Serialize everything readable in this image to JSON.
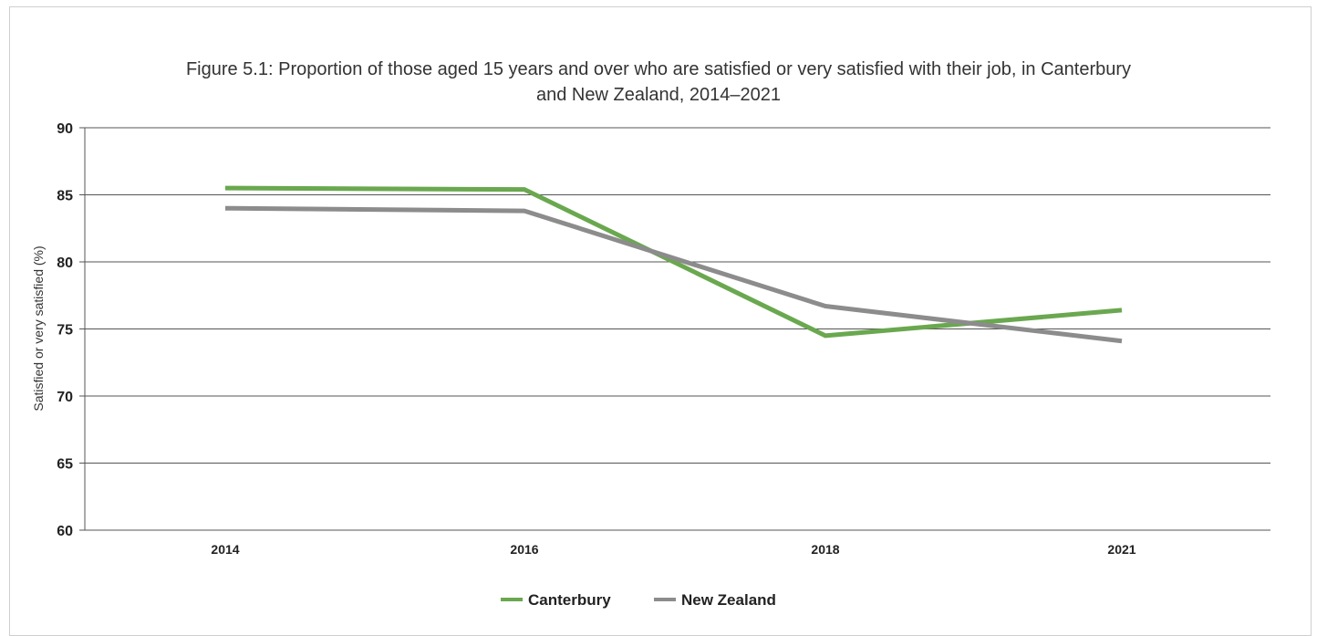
{
  "chart_data": {
    "type": "line",
    "title_line1": "Figure 5.1:  Proportion of those aged 15 years and over who are satisfied or very satisfied with their job, in Canterbury",
    "title_line2": "and New Zealand, 2014–2021",
    "ylabel": "Satisfied or very satisfied (%)",
    "xlabel": "",
    "x": [
      "2014",
      "2016",
      "2018",
      "2021"
    ],
    "ylim": [
      60,
      90
    ],
    "yticks": [
      "60",
      "65",
      "70",
      "75",
      "80",
      "85",
      "90"
    ],
    "grid": true,
    "legend_position": "bottom",
    "series": [
      {
        "name": "Canterbury",
        "color": "#6aa84f",
        "values": [
          85.5,
          85.4,
          74.5,
          76.4
        ]
      },
      {
        "name": "New Zealand",
        "color": "#8c8c8c",
        "values": [
          84.0,
          83.8,
          76.7,
          74.1
        ]
      }
    ]
  }
}
